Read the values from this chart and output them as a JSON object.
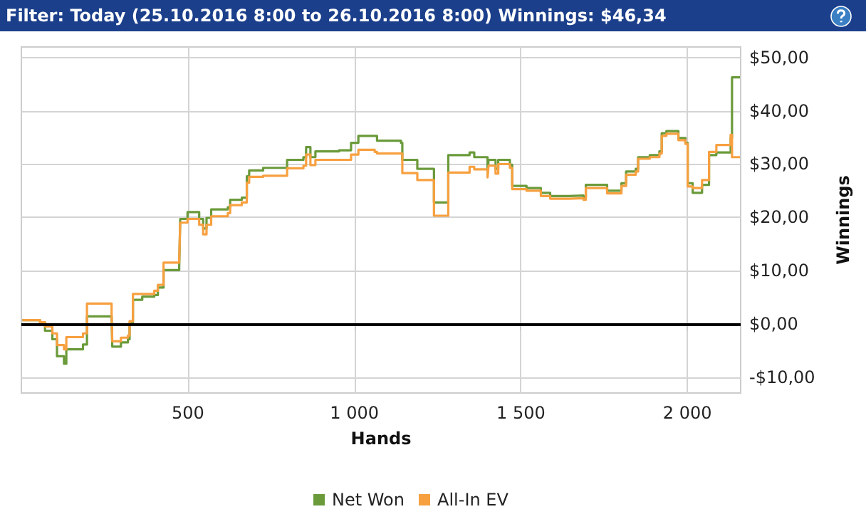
{
  "chart_data": {
    "type": "step",
    "title": "Filter: Today (25.10.2016 8:00 to 26.10.2016 8:00) Winnings: $46,34",
    "xlabel": "Hands",
    "ylabel": "Winnings",
    "x": [
      3,
      56,
      71,
      93,
      107,
      128,
      135,
      185,
      197,
      271,
      273,
      299,
      320,
      325,
      335,
      363,
      399,
      410,
      427,
      474,
      477,
      499,
      534,
      546,
      556,
      570,
      620,
      627,
      662,
      677,
      684,
      726,
      798,
      847,
      855,
      868,
      883,
      954,
      990,
      1012,
      1061,
      1068,
      1140,
      1144,
      1182,
      1189,
      1235,
      1239,
      1278,
      1282,
      1346,
      1360,
      1400,
      1403,
      1424,
      1432,
      1467,
      1474,
      1517,
      1560,
      1588,
      1645,
      1688,
      1695,
      1731,
      1759,
      1802,
      1816,
      1845,
      1852,
      1887,
      1916,
      1923,
      1937,
      1973,
      1994,
      2001,
      2016,
      2044,
      2065,
      2087,
      2130,
      2134,
      2158
    ],
    "series": [
      {
        "name": "Net Won",
        "color": "#6a9a3a",
        "values": [
          0.7,
          0.3,
          -1.3,
          -2.9,
          -6.1,
          -7.5,
          -4.8,
          -3.9,
          1.4,
          1.1,
          -4.3,
          -3.5,
          -2.9,
          0.1,
          4.5,
          5.1,
          5.4,
          6.8,
          10.1,
          10.8,
          19.7,
          21.0,
          19.7,
          17.9,
          19.9,
          21.5,
          21.9,
          23.3,
          23.7,
          27.7,
          28.8,
          29.3,
          30.8,
          31.3,
          33.2,
          31.3,
          32.4,
          32.6,
          34.0,
          35.3,
          35.3,
          34.4,
          34.0,
          30.8,
          30.8,
          29.1,
          29.1,
          22.8,
          22.8,
          31.7,
          32.2,
          31.3,
          28.2,
          30.8,
          29.1,
          30.8,
          29.9,
          25.9,
          25.5,
          24.6,
          24.0,
          24.1,
          23.7,
          26.1,
          26.1,
          25.0,
          26.4,
          28.6,
          29.1,
          31.3,
          31.7,
          32.4,
          35.8,
          36.2,
          34.9,
          34.0,
          26.4,
          24.6,
          26.1,
          31.7,
          32.2,
          34.9,
          46.3,
          46.34
        ]
      },
      {
        "name": "All-In EV",
        "color": "#f7a040",
        "values": [
          0.7,
          0.3,
          -0.5,
          -1.8,
          -4.0,
          -4.8,
          -2.5,
          -1.8,
          3.8,
          1.9,
          -3.3,
          -2.6,
          -2.2,
          0.5,
          5.6,
          5.6,
          6.2,
          7.3,
          11.5,
          12.0,
          19.0,
          19.7,
          18.6,
          16.8,
          18.6,
          20.2,
          20.8,
          22.3,
          22.8,
          26.5,
          27.6,
          27.8,
          29.2,
          29.7,
          31.8,
          29.8,
          30.8,
          30.8,
          31.8,
          32.7,
          32.3,
          32.0,
          32.0,
          28.3,
          28.3,
          27.0,
          27.0,
          20.3,
          20.3,
          28.4,
          29.5,
          29.0,
          27.5,
          29.7,
          28.2,
          30.0,
          29.3,
          25.3,
          25.0,
          24.0,
          23.5,
          23.6,
          23.3,
          25.5,
          25.5,
          24.5,
          25.9,
          28.0,
          28.6,
          31.0,
          31.3,
          32.0,
          35.3,
          35.7,
          34.5,
          33.8,
          25.8,
          25.5,
          27.0,
          32.3,
          33.6,
          35.5,
          31.3,
          31.3
        ]
      }
    ],
    "xlim": [
      0,
      2160
    ],
    "xticks": [
      {
        "value": 500,
        "label": "500"
      },
      {
        "value": 1000,
        "label": "1 000"
      },
      {
        "value": 1500,
        "label": "1 500"
      },
      {
        "value": 2000,
        "label": "2 000"
      }
    ],
    "ylim": [
      -13,
      52
    ],
    "yticks": [
      {
        "value": -10,
        "label": "-$10,00"
      },
      {
        "value": 0,
        "label": "$0,00"
      },
      {
        "value": 10,
        "label": "$10,00"
      },
      {
        "value": 20,
        "label": "$20,00"
      },
      {
        "value": 30,
        "label": "$30,00"
      },
      {
        "value": 40,
        "label": "$40,00"
      },
      {
        "value": 50,
        "label": "$50,00"
      }
    ],
    "ref_lines": [
      {
        "axis": "y",
        "value": 0,
        "color": "#000000"
      }
    ],
    "grid": true,
    "legend": "bottom",
    "marker": "none",
    "line_style": "solid"
  }
}
